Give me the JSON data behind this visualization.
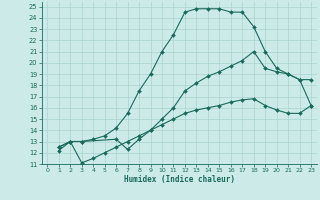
{
  "xlabel": "Humidex (Indice chaleur)",
  "bg_color": "#cceae7",
  "grid_color": "#aad4d0",
  "line_color": "#1a6b5a",
  "xlim": [
    -0.5,
    23.5
  ],
  "ylim": [
    11,
    25.4
  ],
  "xticks": [
    0,
    1,
    2,
    3,
    4,
    5,
    6,
    7,
    8,
    9,
    10,
    11,
    12,
    13,
    14,
    15,
    16,
    17,
    18,
    19,
    20,
    21,
    22,
    23
  ],
  "yticks": [
    11,
    12,
    13,
    14,
    15,
    16,
    17,
    18,
    19,
    20,
    21,
    22,
    23,
    24,
    25
  ],
  "line1_x": [
    1,
    2,
    3,
    4,
    5,
    6,
    7,
    8,
    9,
    10,
    11,
    12,
    13,
    14,
    15,
    16,
    17,
    18,
    19,
    20,
    21,
    22,
    23
  ],
  "line1_y": [
    12.5,
    13.0,
    13.0,
    13.2,
    13.5,
    14.2,
    15.5,
    17.5,
    19.0,
    21.0,
    22.5,
    24.5,
    24.8,
    24.8,
    24.8,
    24.5,
    24.5,
    23.2,
    21.0,
    19.5,
    19.0,
    18.5,
    16.2
  ],
  "line2_x": [
    1,
    2,
    3,
    6,
    7,
    8,
    9,
    10,
    11,
    12,
    13,
    14,
    15,
    16,
    17,
    18,
    19,
    20,
    21,
    22,
    23
  ],
  "line2_y": [
    12.5,
    13.0,
    13.0,
    13.2,
    12.3,
    13.2,
    14.0,
    15.0,
    16.0,
    17.5,
    18.2,
    18.8,
    19.2,
    19.7,
    20.2,
    21.0,
    19.5,
    19.2,
    19.0,
    18.5,
    18.5
  ],
  "line3_x": [
    1,
    2,
    3,
    4,
    5,
    6,
    7,
    8,
    9,
    10,
    11,
    12,
    13,
    14,
    15,
    16,
    17,
    18,
    19,
    20,
    21,
    22,
    23
  ],
  "line3_y": [
    12.2,
    13.0,
    11.1,
    11.5,
    12.0,
    12.5,
    13.0,
    13.5,
    14.0,
    14.5,
    15.0,
    15.5,
    15.8,
    16.0,
    16.2,
    16.5,
    16.7,
    16.8,
    16.2,
    15.8,
    15.5,
    15.5,
    16.2
  ]
}
